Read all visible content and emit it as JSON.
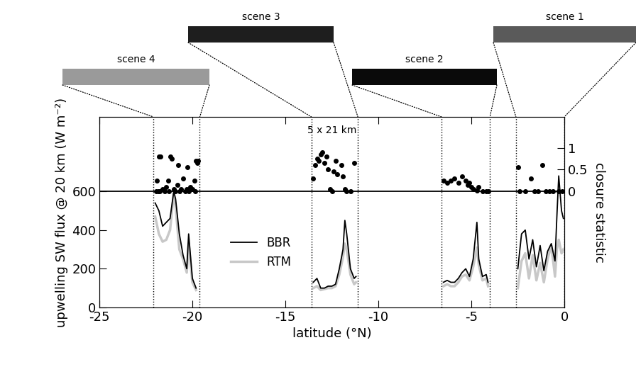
{
  "chart_data": {
    "type": "line",
    "x_label": "latitude (°N)",
    "y_label": "upwelling SW flux @ 20 km (W m⁻²)",
    "y2_label": "closure statistic",
    "annotation": "5 x 21 km",
    "xlim": [
      -25,
      0
    ],
    "xticks": [
      -25,
      -20,
      -15,
      -10,
      -5,
      0
    ],
    "ylim": [
      0,
      985
    ],
    "yticks": [
      0,
      200,
      400,
      600
    ],
    "y2lim": [
      -2.69,
      1.72
    ],
    "y2ticks": [
      0,
      0.5,
      1
    ],
    "zero_line": 0,
    "legend": "lower left",
    "scenes": [
      {
        "name": "scene 4",
        "lat_range": [
          -22.1,
          -19.6
        ]
      },
      {
        "name": "scene 3",
        "lat_range": [
          -13.6,
          -11.1
        ]
      },
      {
        "name": "scene 2",
        "lat_range": [
          -6.6,
          -4.0
        ]
      },
      {
        "name": "scene 1",
        "lat_range": [
          -2.6,
          0
        ]
      }
    ],
    "x": [
      -22.0,
      -21.8,
      -21.6,
      -21.4,
      -21.2,
      -21.0,
      -20.9,
      -20.7,
      -20.5,
      -20.3,
      -20.2,
      -20.0,
      -19.8,
      -17.0,
      -13.5,
      -13.3,
      -13.1,
      -12.9,
      -12.7,
      -12.5,
      -12.3,
      -12.1,
      -11.9,
      -11.8,
      -11.7,
      -11.5,
      -11.3,
      -11.2,
      -9.0,
      -6.5,
      -6.3,
      -6.1,
      -5.9,
      -5.7,
      -5.5,
      -5.3,
      -5.1,
      -4.9,
      -4.7,
      -4.6,
      -4.4,
      -4.2,
      -4.1,
      -3.3,
      -2.5,
      -2.3,
      -2.1,
      -1.9,
      -1.7,
      -1.5,
      -1.3,
      -1.1,
      -0.9,
      -0.7,
      -0.5,
      -0.4,
      -0.3,
      -0.15,
      -0.05
    ],
    "series": [
      {
        "name": "BBR",
        "type": "line",
        "color": "#000000",
        "line_style": "solid",
        "values": [
          540,
          500,
          420,
          440,
          460,
          600,
          560,
          380,
          270,
          200,
          380,
          150,
          100,
          null,
          130,
          150,
          100,
          100,
          110,
          110,
          120,
          200,
          300,
          450,
          380,
          200,
          150,
          160,
          null,
          130,
          140,
          130,
          130,
          150,
          180,
          200,
          160,
          250,
          440,
          250,
          160,
          170,
          130,
          null,
          200,
          380,
          400,
          250,
          350,
          210,
          320,
          190,
          290,
          330,
          240,
          470,
          680,
          500,
          460
        ]
      },
      {
        "name": "RTM",
        "type": "line",
        "color": "#c8c8c8",
        "line_style": "solid",
        "values": [
          470,
          380,
          340,
          350,
          400,
          590,
          520,
          300,
          250,
          180,
          330,
          130,
          90,
          null,
          100,
          110,
          90,
          95,
          100,
          100,
          110,
          170,
          260,
          330,
          300,
          170,
          120,
          130,
          null,
          110,
          120,
          110,
          110,
          130,
          160,
          170,
          140,
          210,
          310,
          220,
          140,
          150,
          110,
          null,
          100,
          240,
          280,
          150,
          270,
          140,
          230,
          130,
          250,
          320,
          160,
          300,
          350,
          280,
          300
        ]
      },
      {
        "type": "scatter",
        "axis": "y2",
        "color": "#000000",
        "marker": "o",
        "x": [
          -21.95,
          -21.9,
          -21.85,
          -21.8,
          -21.75,
          -21.7,
          -21.6,
          -21.5,
          -21.4,
          -21.3,
          -21.25,
          -21.2,
          -21.1,
          -21.0,
          -20.9,
          -20.8,
          -20.75,
          -20.7,
          -20.6,
          -20.5,
          -20.4,
          -20.3,
          -20.25,
          -20.2,
          -20.1,
          -20.0,
          -19.9,
          -19.85,
          -19.8,
          -19.75,
          -19.7,
          -13.5,
          -13.4,
          -13.3,
          -13.2,
          -13.1,
          -13.0,
          -12.9,
          -12.8,
          -12.7,
          -12.6,
          -12.5,
          -12.4,
          -12.3,
          -12.2,
          -12.0,
          -11.9,
          -11.8,
          -11.7,
          -11.5,
          -11.3,
          -6.5,
          -6.3,
          -6.1,
          -5.9,
          -5.7,
          -5.5,
          -5.3,
          -5.2,
          -5.1,
          -5.0,
          -4.9,
          -4.7,
          -4.6,
          -4.4,
          -4.2,
          -4.1,
          -2.5,
          -2.4,
          -2.1,
          -1.8,
          -1.6,
          -1.4,
          -1.2,
          -1.0,
          -0.8,
          -0.6,
          -0.3,
          -0.1
        ],
        "values": [
          0.0,
          0.25,
          0.0,
          0.8,
          0.0,
          0.8,
          0.05,
          0.0,
          0.1,
          0.25,
          0.0,
          0.8,
          0.75,
          0.05,
          0.0,
          0.15,
          0.6,
          0.0,
          0.05,
          0.3,
          0.0,
          0.05,
          0.55,
          0.0,
          0.1,
          0.05,
          0.25,
          0.0,
          0.7,
          0.65,
          0.7,
          0.3,
          0.6,
          0.75,
          0.7,
          0.85,
          0.9,
          0.65,
          0.8,
          0.5,
          0.05,
          0.0,
          0.45,
          0.7,
          0.4,
          0.6,
          0.35,
          0.05,
          0.0,
          0.0,
          0.65,
          0.25,
          0.2,
          0.25,
          0.3,
          0.2,
          0.35,
          0.25,
          0.15,
          0.2,
          0.1,
          0.05,
          0.02,
          0.1,
          0.0,
          0.0,
          0.0,
          0.55,
          0.0,
          0.0,
          0.3,
          0.0,
          0.0,
          0.6,
          0.0,
          0.0,
          0.0,
          0.0,
          0.0
        ]
      }
    ]
  }
}
